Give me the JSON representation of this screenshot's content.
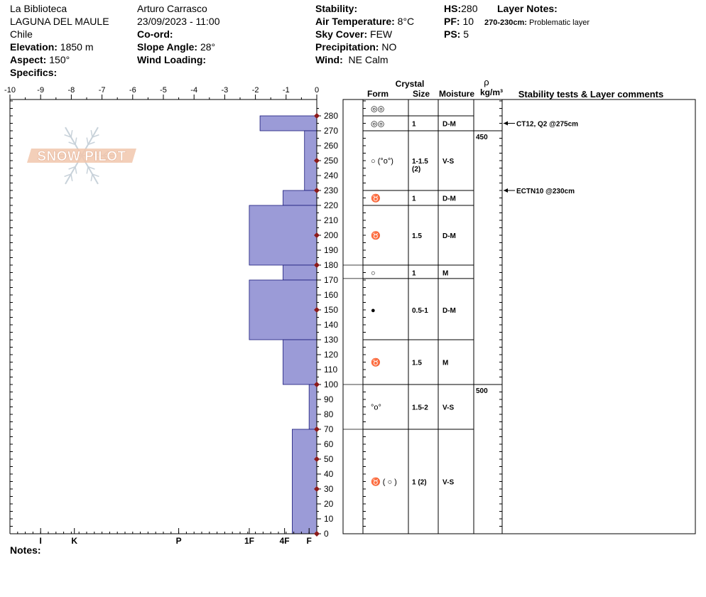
{
  "header": {
    "col1": {
      "location": "La Biblioteca",
      "area": "LAGUNA DEL MAULE",
      "country": "Chile",
      "elevation_label": "Elevation:",
      "elevation_value": "1850 m",
      "aspect_label": "Aspect:",
      "aspect_value": "150°",
      "specifics_label": "Specifics:"
    },
    "col2": {
      "observer": "Arturo Carrasco",
      "datetime": "23/09/2023 - 11:00",
      "coord_label": "Co-ord:",
      "slope_label": "Slope Angle:",
      "slope_value": "28°",
      "wind_loading_label": "Wind Loading:"
    },
    "col3": {
      "stability_label": "Stability:",
      "air_temp_label": "Air Temperature:",
      "air_temp_value": "8°C",
      "sky_label": "Sky Cover:",
      "sky_value": "FEW",
      "precip_label": "Precipitation:",
      "precip_value": "NO",
      "wind_label": "Wind:",
      "wind_value": "NE Calm"
    },
    "col4": {
      "hs_label": "HS:",
      "hs_value": "280",
      "pf_label": "PF:",
      "pf_value": "10",
      "ps_label": "PS:",
      "ps_value": "5"
    },
    "layer_notes": {
      "label": "Layer Notes:",
      "range": "270-230cm:",
      "text": "Problematic layer"
    }
  },
  "notes_label": "Notes:",
  "logo_text": "SNOW PILOT",
  "colors": {
    "bar_fill": "#9b9bd7",
    "bar_stroke": "#1a1a7a",
    "marker": "#8b1a1a"
  },
  "columns": {
    "crystal": "Crystal",
    "form": "Form",
    "size": "Size",
    "moisture": "Moisture",
    "rho": "ρ",
    "density_unit": "kg/m³",
    "stability": "Stability tests & Layer comments"
  },
  "chart_data": {
    "type": "bar",
    "orientation": "horizontal",
    "top_axis_ticks": [
      "-10",
      "-9",
      "-8",
      "-7",
      "-6",
      "-5",
      "-4",
      "-3",
      "-2",
      "-1",
      "0"
    ],
    "bottom_axis_labels": [
      {
        "label": "I",
        "value": -9
      },
      {
        "label": "K",
        "value": -7.9
      },
      {
        "label": "P",
        "value": -4.5
      },
      {
        "label": "1F",
        "value": -2.2
      },
      {
        "label": "4F",
        "value": -1.05
      },
      {
        "label": "F",
        "value": -0.25
      }
    ],
    "height_ticks": [
      "0",
      "10",
      "20",
      "30",
      "40",
      "50",
      "60",
      "70",
      "80",
      "90",
      "100",
      "110",
      "120",
      "130",
      "140",
      "150",
      "160",
      "170",
      "180",
      "190",
      "200",
      "210",
      "220",
      "230",
      "240",
      "250",
      "260",
      "270",
      "280"
    ],
    "ylim": [
      0,
      290
    ],
    "xlim": [
      -10,
      0
    ],
    "hardness_profile": [
      {
        "from": 270,
        "to": 280,
        "value": -1.85
      },
      {
        "from": 230,
        "to": 270,
        "value": -0.4
      },
      {
        "from": 220,
        "to": 230,
        "value": -1.1
      },
      {
        "from": 180,
        "to": 220,
        "value": -2.2
      },
      {
        "from": 170,
        "to": 180,
        "value": -1.1
      },
      {
        "from": 130,
        "to": 170,
        "value": -2.2
      },
      {
        "from": 100,
        "to": 130,
        "value": -1.1
      },
      {
        "from": 70,
        "to": 100,
        "value": -0.25
      },
      {
        "from": 0,
        "to": 70,
        "value": -0.8
      }
    ],
    "temperature_markers": [
      0,
      30,
      50,
      70,
      100,
      150,
      180,
      200,
      230,
      250,
      280
    ]
  },
  "layers": [
    {
      "top": 290,
      "bottom": 280,
      "form": "◎◎",
      "size": "",
      "moisture": "",
      "center": 285
    },
    {
      "top": 280,
      "bottom": 270,
      "form": "◎◎",
      "size": "1",
      "moisture": "D-M",
      "center": 275
    },
    {
      "top": 270,
      "bottom": 230,
      "form": "○ (°o°)",
      "size": "1-1.5 (2)",
      "moisture": "V-S",
      "center": 250
    },
    {
      "top": 230,
      "bottom": 220,
      "form": "♉",
      "size": "1",
      "moisture": "D-M",
      "center": 225
    },
    {
      "top": 220,
      "bottom": 180,
      "form": "♉",
      "size": "1.5",
      "moisture": "D-M",
      "center": 200
    },
    {
      "top": 180,
      "bottom": 171,
      "form": "○",
      "size": "1",
      "moisture": "M",
      "center": 175
    },
    {
      "top": 171,
      "bottom": 130,
      "form": "●",
      "size": "0.5-1",
      "moisture": "D-M",
      "center": 150
    },
    {
      "top": 130,
      "bottom": 100,
      "form": "♉",
      "size": "1.5",
      "moisture": "M",
      "center": 115
    },
    {
      "top": 100,
      "bottom": 70,
      "form": "°o°",
      "size": "1.5-2",
      "moisture": "V-S",
      "center": 85
    },
    {
      "top": 70,
      "bottom": 0,
      "form": "♉ ( ○ )",
      "size": "1 (2)",
      "moisture": "V-S",
      "center": 35
    }
  ],
  "densities": [
    {
      "height": 270,
      "value": "450"
    },
    {
      "height": 100,
      "value": "500"
    }
  ],
  "stability_tests": [
    {
      "height": 275,
      "text": "CT12, Q2 @275cm"
    },
    {
      "height": 230,
      "text": "ECTN10 @230cm"
    }
  ]
}
